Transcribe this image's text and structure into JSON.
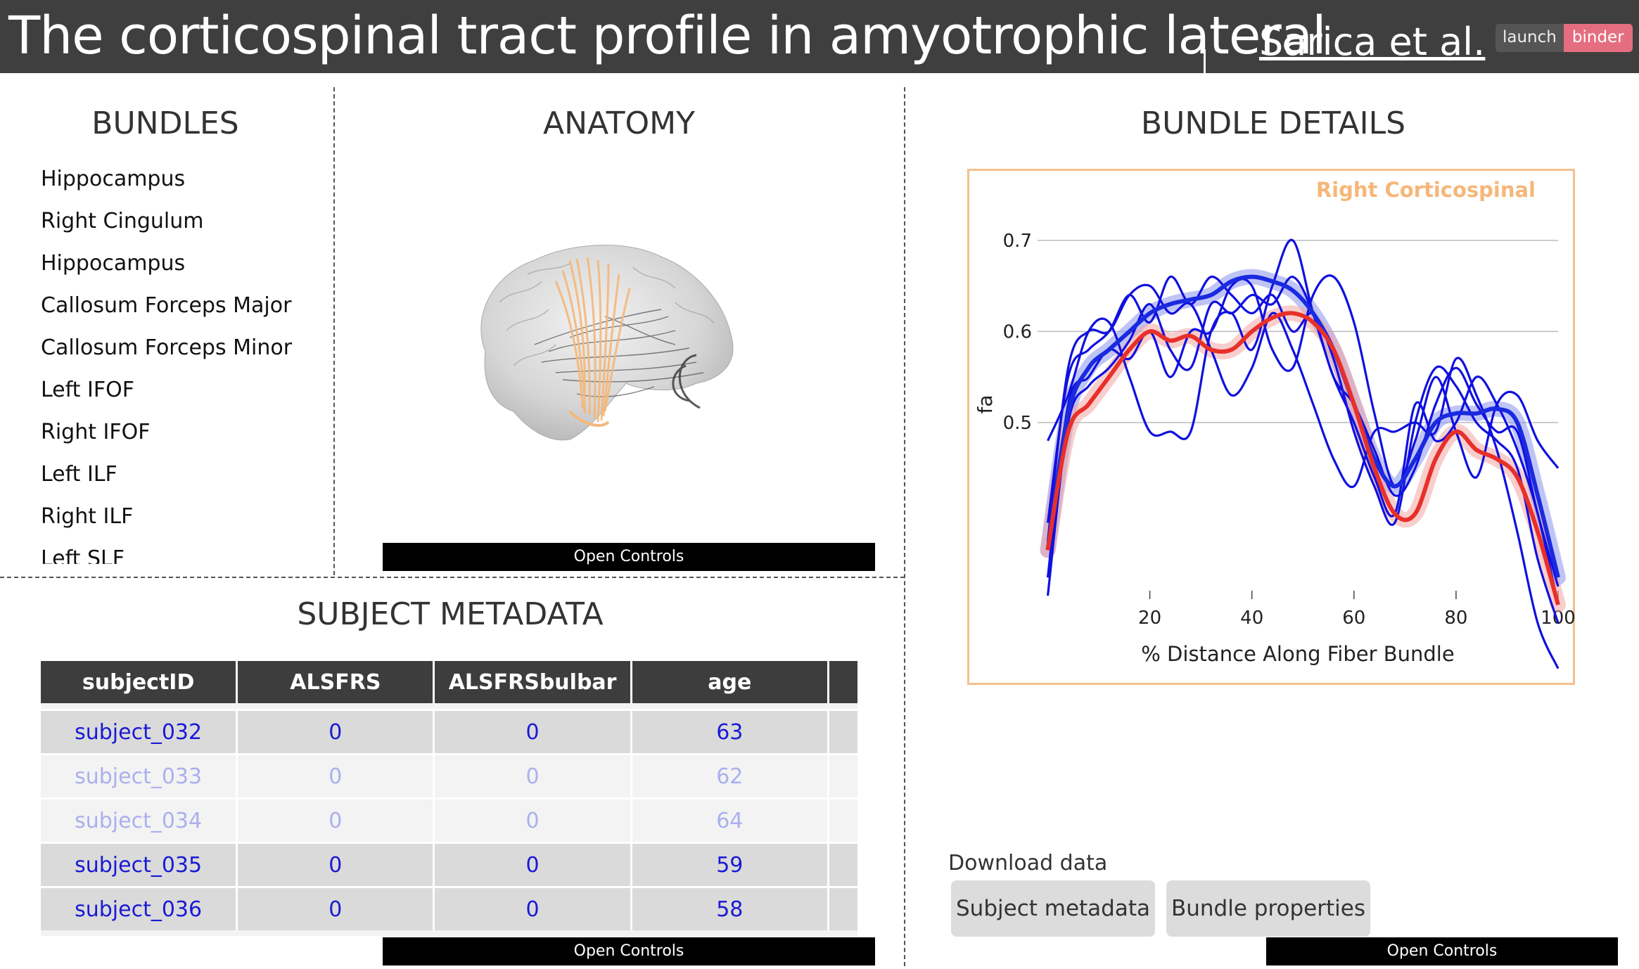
{
  "header": {
    "title": "The corticospinal tract profile in amyotrophic lateral",
    "author": "Sarica et al.",
    "binder_left": "launch",
    "binder_right": "binder"
  },
  "bundles": {
    "title": "BUNDLES",
    "items": [
      "Hippocampus",
      "Right Cingulum",
      "Hippocampus",
      "Callosum Forceps Major",
      "Callosum Forceps Minor",
      "Left IFOF",
      "Right IFOF",
      "Left ILF",
      "Right ILF",
      "Left SLF"
    ]
  },
  "anatomy": {
    "title": "ANATOMY",
    "open_controls": "Open Controls"
  },
  "metadata": {
    "title": "SUBJECT METADATA",
    "columns": [
      "subjectID",
      "ALSFRS",
      "ALSFRSbulbar",
      "age"
    ],
    "rows": [
      {
        "subjectID": "subject_032",
        "ALSFRS": "0",
        "ALSFRSbulbar": "0",
        "age": "63",
        "selected": true
      },
      {
        "subjectID": "subject_033",
        "ALSFRS": "0",
        "ALSFRSbulbar": "0",
        "age": "62",
        "selected": false
      },
      {
        "subjectID": "subject_034",
        "ALSFRS": "0",
        "ALSFRSbulbar": "0",
        "age": "64",
        "selected": false
      },
      {
        "subjectID": "subject_035",
        "ALSFRS": "0",
        "ALSFRSbulbar": "0",
        "age": "59",
        "selected": true
      },
      {
        "subjectID": "subject_036",
        "ALSFRS": "0",
        "ALSFRSbulbar": "0",
        "age": "58",
        "selected": true
      }
    ],
    "open_controls": "Open Controls"
  },
  "details": {
    "title": "BUNDLE DETAILS",
    "download_label": "Download data",
    "btn_subject": "Subject metadata",
    "btn_bundle": "Bundle properties",
    "open_controls": "Open Controls"
  },
  "colors": {
    "header_bg": "#3f3f3f",
    "bundle_accent": "#f5b77a",
    "subject_line": "#1010e0",
    "mean_blue": "#1a2ae0",
    "mean_red": "#e8302a",
    "binder_pink": "#e46e7f"
  },
  "chart_data": {
    "type": "line",
    "title": "Right Corticospinal",
    "xlabel": "% Distance Along Fiber Bundle",
    "ylabel": "fa",
    "xlim": [
      -2,
      100
    ],
    "ylim": [
      0.3,
      0.74
    ],
    "xticks": [
      20,
      40,
      60,
      80,
      100
    ],
    "yticks": [
      0.5,
      0.6,
      0.7
    ],
    "grid": "horizontal",
    "subject_series": [
      {
        "x": [
          0,
          4,
          8,
          12,
          16,
          20,
          24,
          28,
          32,
          36,
          40,
          44,
          48,
          52,
          56,
          60,
          64,
          68,
          72,
          76,
          80,
          84,
          88,
          92,
          96,
          100
        ],
        "y": [
          0.37,
          0.56,
          0.6,
          0.6,
          0.64,
          0.65,
          0.62,
          0.63,
          0.58,
          0.53,
          0.56,
          0.62,
          0.58,
          0.52,
          0.46,
          0.43,
          0.49,
          0.49,
          0.5,
          0.49,
          0.57,
          0.53,
          0.47,
          0.38,
          0.28,
          0.23
        ]
      },
      {
        "x": [
          0,
          4,
          8,
          12,
          16,
          20,
          24,
          28,
          32,
          36,
          40,
          44,
          48,
          52,
          56,
          60,
          64,
          68,
          72,
          76,
          80,
          84,
          88,
          92,
          96,
          100
        ],
        "y": [
          0.48,
          0.53,
          0.6,
          0.61,
          0.55,
          0.49,
          0.49,
          0.49,
          0.6,
          0.62,
          0.58,
          0.65,
          0.7,
          0.62,
          0.55,
          0.5,
          0.44,
          0.4,
          0.52,
          0.48,
          0.5,
          0.55,
          0.52,
          0.47,
          0.4,
          0.3
        ]
      },
      {
        "x": [
          0,
          4,
          8,
          12,
          16,
          20,
          24,
          28,
          32,
          36,
          40,
          44,
          48,
          52,
          56,
          60,
          64,
          68,
          72,
          76,
          80,
          84,
          88,
          92,
          96,
          100
        ],
        "y": [
          0.39,
          0.55,
          0.58,
          0.6,
          0.64,
          0.61,
          0.66,
          0.63,
          0.66,
          0.64,
          0.62,
          0.64,
          0.6,
          0.62,
          0.57,
          0.49,
          0.43,
          0.39,
          0.5,
          0.56,
          0.54,
          0.5,
          0.48,
          0.45,
          0.35,
          0.28
        ]
      },
      {
        "x": [
          0,
          4,
          8,
          12,
          16,
          20,
          24,
          28,
          32,
          36,
          40,
          44,
          48,
          52,
          56,
          60,
          64,
          68,
          72,
          76,
          80,
          84,
          88,
          92,
          96,
          100
        ],
        "y": [
          0.33,
          0.52,
          0.55,
          0.58,
          0.57,
          0.6,
          0.55,
          0.6,
          0.6,
          0.65,
          0.65,
          0.58,
          0.56,
          0.64,
          0.66,
          0.61,
          0.51,
          0.43,
          0.48,
          0.55,
          0.49,
          0.44,
          0.52,
          0.53,
          0.48,
          0.45
        ]
      },
      {
        "x": [
          0,
          4,
          8,
          12,
          16,
          20,
          24,
          28,
          32,
          36,
          40,
          44,
          48,
          52,
          56,
          60,
          64,
          68,
          72,
          76,
          80,
          84,
          88,
          92,
          96,
          100
        ],
        "y": [
          0.31,
          0.5,
          0.54,
          0.56,
          0.59,
          0.63,
          0.58,
          0.56,
          0.63,
          0.62,
          0.64,
          0.63,
          0.66,
          0.62,
          0.55,
          0.52,
          0.47,
          0.42,
          0.45,
          0.52,
          0.56,
          0.52,
          0.49,
          0.49,
          0.4,
          0.32
        ]
      }
    ],
    "mean_blue": {
      "x": [
        0,
        4,
        8,
        12,
        16,
        20,
        24,
        28,
        32,
        36,
        40,
        44,
        48,
        52,
        56,
        60,
        64,
        68,
        72,
        76,
        80,
        84,
        88,
        92,
        96,
        100
      ],
      "y": [
        0.36,
        0.51,
        0.56,
        0.58,
        0.6,
        0.62,
        0.63,
        0.635,
        0.64,
        0.655,
        0.66,
        0.655,
        0.645,
        0.62,
        0.58,
        0.52,
        0.46,
        0.43,
        0.46,
        0.5,
        0.51,
        0.51,
        0.515,
        0.5,
        0.42,
        0.33
      ]
    },
    "mean_red": {
      "x": [
        0,
        4,
        8,
        12,
        16,
        20,
        24,
        28,
        32,
        36,
        40,
        44,
        48,
        52,
        56,
        60,
        64,
        68,
        72,
        76,
        80,
        84,
        88,
        92,
        96,
        100
      ],
      "y": [
        0.36,
        0.49,
        0.52,
        0.55,
        0.58,
        0.6,
        0.59,
        0.595,
        0.58,
        0.58,
        0.6,
        0.615,
        0.62,
        0.61,
        0.58,
        0.52,
        0.45,
        0.4,
        0.4,
        0.46,
        0.49,
        0.47,
        0.46,
        0.44,
        0.38,
        0.3
      ]
    }
  }
}
